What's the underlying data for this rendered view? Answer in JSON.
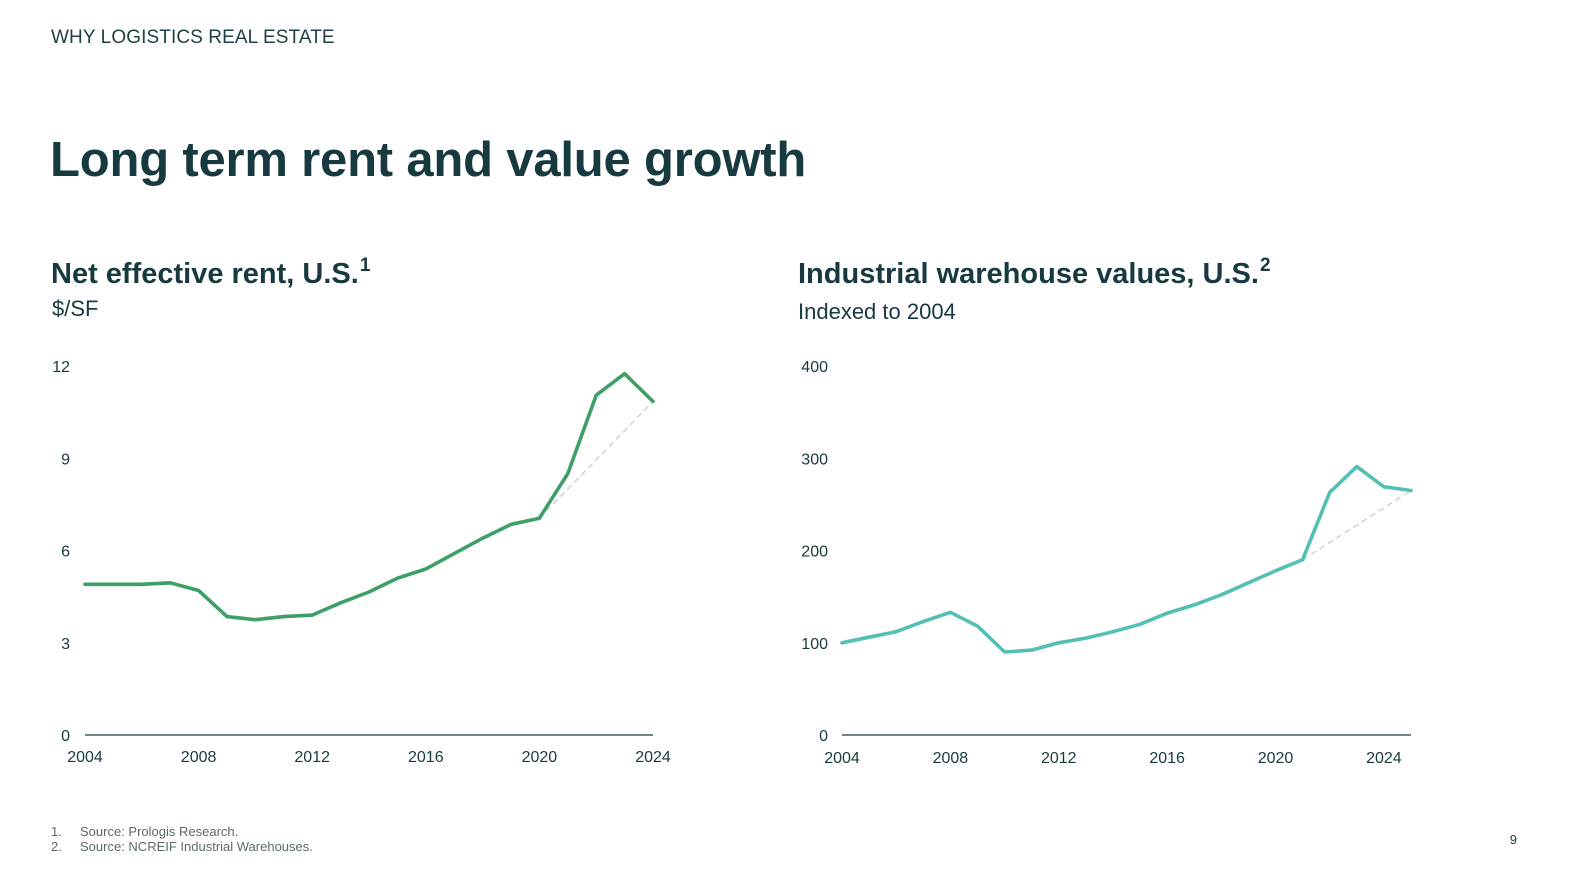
{
  "header": {
    "eyebrow": "WHY LOGISTICS REAL ESTATE",
    "title": "Long term rent and value growth"
  },
  "colors": {
    "rent_line": "#3f9f68",
    "value_line": "#54bfb4",
    "trend_line": "#d3d3d3",
    "axis": "#173a40",
    "text": "#173a40"
  },
  "chart_data": [
    {
      "type": "line",
      "title": "Net effective rent, U.S.",
      "footnote_mark": "1",
      "subtitle": "$/SF",
      "xlim": [
        2004,
        2024
      ],
      "ylim": [
        0,
        12
      ],
      "x_ticks": [
        "2004",
        "2008",
        "2012",
        "2016",
        "2020",
        "2024"
      ],
      "y_ticks": [
        "0",
        "3",
        "6",
        "9",
        "12"
      ],
      "series": [
        {
          "name": "Net effective rent",
          "x": [
            2004,
            2005,
            2006,
            2007,
            2008,
            2009,
            2010,
            2011,
            2012,
            2013,
            2014,
            2015,
            2016,
            2017,
            2018,
            2019,
            2020,
            2021,
            2022,
            2023,
            2024
          ],
          "values": [
            4.9,
            4.9,
            4.9,
            4.95,
            4.7,
            3.85,
            3.75,
            3.85,
            3.9,
            4.3,
            4.65,
            5.1,
            5.4,
            5.9,
            6.4,
            6.85,
            7.05,
            8.5,
            11.05,
            11.75,
            10.85
          ]
        }
      ],
      "trend_segment": {
        "x": [
          2020,
          2024
        ],
        "values": [
          7.05,
          10.85
        ]
      }
    },
    {
      "type": "line",
      "title": "Industrial warehouse values, U.S.",
      "footnote_mark": "2",
      "subtitle": "Indexed to 2004",
      "xlim": [
        2004,
        2025
      ],
      "ylim": [
        0,
        400
      ],
      "x_ticks": [
        "2004",
        "2008",
        "2012",
        "2016",
        "2020",
        "2024"
      ],
      "y_ticks": [
        "0",
        "100",
        "200",
        "300",
        "400"
      ],
      "series": [
        {
          "name": "Industrial warehouse values",
          "x": [
            2004,
            2005,
            2006,
            2007,
            2008,
            2009,
            2010,
            2011,
            2012,
            2013,
            2014,
            2015,
            2016,
            2017,
            2018,
            2019,
            2020,
            2021,
            2022,
            2023,
            2024,
            2025
          ],
          "values": [
            100,
            106,
            112,
            123,
            133,
            118,
            90,
            92,
            100,
            105,
            112,
            120,
            132,
            141,
            152,
            165,
            178,
            190,
            263,
            291,
            269,
            265
          ]
        }
      ],
      "trend_segment": {
        "x": [
          2021,
          2025
        ],
        "values": [
          190,
          265
        ]
      }
    }
  ],
  "footnotes": [
    {
      "num": "1.",
      "text": "Source: Prologis Research."
    },
    {
      "num": "2.",
      "text": "Source: NCREIF Industrial Warehouses."
    }
  ],
  "page_number": "9"
}
